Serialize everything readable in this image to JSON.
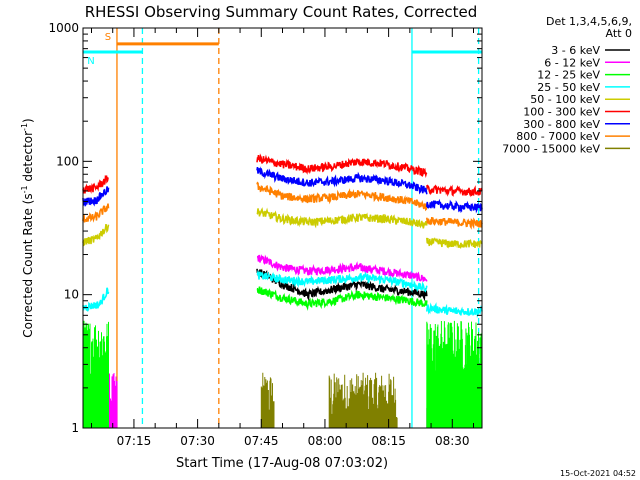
{
  "chart_data": {
    "type": "line",
    "title": "RHESSI Observing Summary Count Rates, Corrected",
    "xlabel": "Start Time (17-Aug-08 07:03:02)",
    "ylabel_main": "Corrected Count Rate (s",
    "ylabel_sup1": "-1",
    "ylabel_mid": " detector",
    "ylabel_sup2": "-1",
    "ylabel_end": ")",
    "yscale": "log",
    "ylim": [
      1,
      1000
    ],
    "xlim_minutes": [
      3.0,
      97.0
    ],
    "x_ticks": [
      {
        "label": "07:15",
        "min": 15
      },
      {
        "label": "07:30",
        "min": 30
      },
      {
        "label": "07:45",
        "min": 45
      },
      {
        "label": "08:00",
        "min": 60
      },
      {
        "label": "08:15",
        "min": 75
      },
      {
        "label": "08:30",
        "min": 90
      }
    ],
    "y_ticks": [
      {
        "label": "1",
        "value": 1
      },
      {
        "label": "10",
        "value": 10
      },
      {
        "label": "100",
        "value": 100
      },
      {
        "label": "1000",
        "value": 1000
      }
    ],
    "legend_header": [
      "Det 1,3,4,5,6,9,",
      "Att 0"
    ],
    "legend_placement": "right",
    "series": [
      {
        "name": "3 - 6 keV",
        "color": "#000000",
        "segments": [
          {
            "start": 44,
            "end": 84,
            "points": [
              [
                44,
                15
              ],
              [
                50,
                12
              ],
              [
                56,
                10
              ],
              [
                62,
                11
              ],
              [
                68,
                12
              ],
              [
                74,
                11
              ],
              [
                80,
                10.5
              ],
              [
                84,
                10
              ]
            ]
          }
        ]
      },
      {
        "name": "6 - 12 keV",
        "color": "#ff00ff",
        "segments": [
          {
            "start": 3,
            "end": 11,
            "points": [
              [
                3,
                1.0
              ],
              [
                11,
                1.0
              ]
            ]
          },
          {
            "start": 44,
            "end": 84,
            "points": [
              [
                44,
                19
              ],
              [
                50,
                16
              ],
              [
                56,
                15
              ],
              [
                62,
                15.5
              ],
              [
                68,
                16
              ],
              [
                74,
                15
              ],
              [
                80,
                14
              ],
              [
                84,
                13
              ]
            ]
          },
          {
            "start": 84,
            "end": 97,
            "points": [
              [
                84,
                1.0
              ],
              [
                97,
                1.0
              ]
            ]
          }
        ]
      },
      {
        "name": "12 - 25 keV",
        "color": "#00ff00",
        "segments": [
          {
            "start": 3,
            "end": 9,
            "points": [
              [
                3,
                2.5
              ],
              [
                9,
                2.5
              ]
            ]
          },
          {
            "start": 44,
            "end": 84,
            "points": [
              [
                44,
                11
              ],
              [
                50,
                9.5
              ],
              [
                56,
                8.5
              ],
              [
                62,
                9
              ],
              [
                68,
                10
              ],
              [
                74,
                9.5
              ],
              [
                80,
                9
              ],
              [
                84,
                8.5
              ]
            ]
          },
          {
            "start": 84,
            "end": 97,
            "points": [
              [
                84,
                2.5
              ],
              [
                97,
                2.5
              ]
            ]
          }
        ]
      },
      {
        "name": "25 - 50 keV",
        "color": "#00ffff",
        "segments": [
          {
            "start": 3,
            "end": 9,
            "points": [
              [
                3,
                8
              ],
              [
                7,
                8.5
              ],
              [
                9,
                11
              ]
            ]
          },
          {
            "start": 44,
            "end": 84,
            "points": [
              [
                44,
                14
              ],
              [
                50,
                13
              ],
              [
                56,
                12.5
              ],
              [
                62,
                13
              ],
              [
                68,
                13.5
              ],
              [
                74,
                13
              ],
              [
                80,
                12
              ],
              [
                84,
                11
              ]
            ]
          },
          {
            "start": 84,
            "end": 97,
            "points": [
              [
                84,
                8
              ],
              [
                90,
                7.5
              ],
              [
                97,
                7.5
              ]
            ]
          }
        ]
      },
      {
        "name": "50 - 100 keV",
        "color": "#cccc00",
        "segments": [
          {
            "start": 3,
            "end": 9,
            "points": [
              [
                3,
                25
              ],
              [
                6,
                26
              ],
              [
                9,
                33
              ]
            ]
          },
          {
            "start": 44,
            "end": 84,
            "points": [
              [
                44,
                42
              ],
              [
                50,
                37
              ],
              [
                56,
                35
              ],
              [
                62,
                36
              ],
              [
                68,
                38
              ],
              [
                74,
                37
              ],
              [
                80,
                35
              ],
              [
                84,
                33
              ]
            ]
          },
          {
            "start": 84,
            "end": 97,
            "points": [
              [
                84,
                25
              ],
              [
                90,
                24
              ],
              [
                97,
                24
              ]
            ]
          }
        ]
      },
      {
        "name": "100 - 300 keV",
        "color": "#ff0000",
        "segments": [
          {
            "start": 3,
            "end": 9,
            "points": [
              [
                3,
                62
              ],
              [
                6,
                63
              ],
              [
                9,
                75
              ]
            ]
          },
          {
            "start": 44,
            "end": 84,
            "points": [
              [
                44,
                105
              ],
              [
                50,
                95
              ],
              [
                56,
                88
              ],
              [
                62,
                92
              ],
              [
                68,
                100
              ],
              [
                74,
                96
              ],
              [
                80,
                88
              ],
              [
                84,
                82
              ]
            ]
          },
          {
            "start": 84,
            "end": 97,
            "points": [
              [
                84,
                62
              ],
              [
                90,
                60
              ],
              [
                97,
                59
              ]
            ]
          }
        ]
      },
      {
        "name": "300 - 800 keV",
        "color": "#0000ff",
        "segments": [
          {
            "start": 3,
            "end": 9,
            "points": [
              [
                3,
                50
              ],
              [
                6,
                51
              ],
              [
                9,
                62
              ]
            ]
          },
          {
            "start": 44,
            "end": 84,
            "points": [
              [
                44,
                85
              ],
              [
                50,
                74
              ],
              [
                56,
                69
              ],
              [
                62,
                71
              ],
              [
                68,
                75
              ],
              [
                74,
                72
              ],
              [
                80,
                66
              ],
              [
                84,
                60
              ]
            ]
          },
          {
            "start": 84,
            "end": 97,
            "points": [
              [
                84,
                48
              ],
              [
                90,
                46
              ],
              [
                97,
                45
              ]
            ]
          }
        ]
      },
      {
        "name": "800 - 7000 keV",
        "color": "#ff8000",
        "segments": [
          {
            "start": 3,
            "end": 9,
            "points": [
              [
                3,
                37
              ],
              [
                6,
                38
              ],
              [
                9,
                46
              ]
            ]
          },
          {
            "start": 44,
            "end": 84,
            "points": [
              [
                44,
                65
              ],
              [
                50,
                55
              ],
              [
                56,
                52
              ],
              [
                62,
                54
              ],
              [
                68,
                57
              ],
              [
                74,
                54
              ],
              [
                80,
                50
              ],
              [
                84,
                46
              ]
            ]
          },
          {
            "start": 84,
            "end": 97,
            "points": [
              [
                84,
                36
              ],
              [
                90,
                35
              ],
              [
                97,
                34
              ]
            ]
          }
        ]
      },
      {
        "name": "7000 - 15000 keV",
        "color": "#808000",
        "segments": [
          {
            "start": 45,
            "end": 48,
            "points": [
              [
                45,
                1.0
              ],
              [
                48,
                1.0
              ]
            ]
          },
          {
            "start": 61,
            "end": 77,
            "points": [
              [
                61,
                1.0
              ],
              [
                77,
                1.0
              ]
            ]
          }
        ]
      }
    ],
    "flags": [
      {
        "label": "S",
        "color": "#ff8000",
        "style": "solid",
        "start": 11.0,
        "end": 35.0,
        "value": 760
      },
      {
        "label": "N",
        "color": "#00ffff",
        "style": "solid",
        "start": 3.0,
        "end": 17.0,
        "value": 660
      },
      {
        "label": "",
        "color": "#00ffff",
        "style": "solid",
        "start": 80.5,
        "end": 97.0,
        "value": 660
      }
    ],
    "vlines": [
      {
        "min": 11.0,
        "color": "#ff8000",
        "style": "solid"
      },
      {
        "min": 17.0,
        "color": "#00ffff",
        "style": "dashed"
      },
      {
        "min": 35.0,
        "color": "#ff8000",
        "style": "dashed"
      },
      {
        "min": 80.5,
        "color": "#00ffff",
        "style": "solid"
      },
      {
        "min": 96.2,
        "color": "#00ffff",
        "style": "dashed"
      }
    ],
    "datestamp": "15-Oct-2021 04:52"
  }
}
